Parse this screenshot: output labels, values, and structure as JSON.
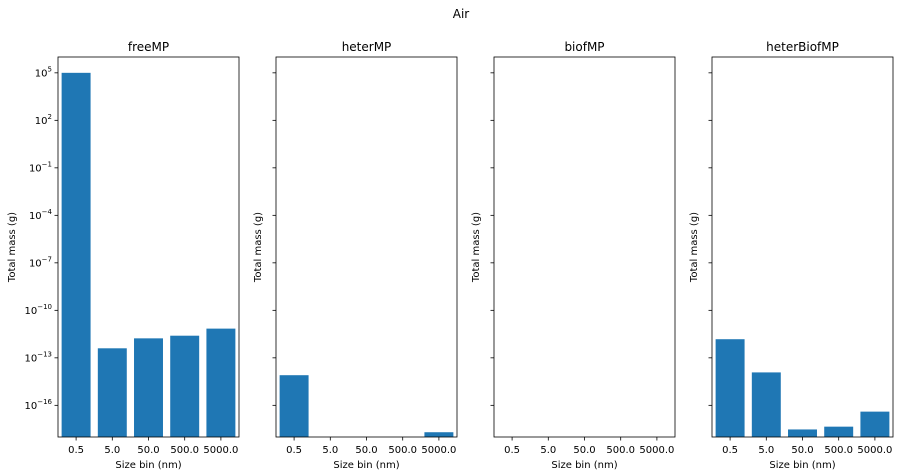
{
  "suptitle": "Air",
  "chart_data": [
    {
      "type": "bar",
      "title": "freeMP",
      "xlabel": "Size bin (nm)",
      "ylabel": "Total mass (g)",
      "yscale": "log",
      "categories": [
        "0.5",
        "5.0",
        "50.0",
        "500.0",
        "5000.0"
      ],
      "values": [
        100000.0,
        4e-13,
        1.7e-12,
        2.5e-12,
        7e-12
      ],
      "ylim": [
        1e-18,
        1000000.0
      ],
      "yticks": [
        {
          "value": 100000.0,
          "base": "10",
          "exp": "5"
        },
        {
          "value": 100.0,
          "base": "10",
          "exp": "2"
        },
        {
          "value": 0.1,
          "base": "10",
          "exp": "−1"
        },
        {
          "value": 0.0001,
          "base": "10",
          "exp": "−4"
        },
        {
          "value": 1e-07,
          "base": "10",
          "exp": "−7"
        },
        {
          "value": 1e-10,
          "base": "10",
          "exp": "−10"
        },
        {
          "value": 1e-13,
          "base": "10",
          "exp": "−13"
        },
        {
          "value": 1e-16,
          "base": "10",
          "exp": "−16"
        }
      ],
      "color": "#1f77b4"
    },
    {
      "type": "bar",
      "title": "heterMP",
      "xlabel": "Size bin (nm)",
      "ylabel": "Total mass (g)",
      "yscale": "log",
      "categories": [
        "0.5",
        "5.0",
        "50.0",
        "500.0",
        "5000.0"
      ],
      "values": [
        8e-15,
        null,
        null,
        null,
        2e-18
      ],
      "ylim": [
        1e-18,
        1000000.0
      ],
      "color": "#1f77b4"
    },
    {
      "type": "bar",
      "title": "biofMP",
      "xlabel": "Size bin (nm)",
      "ylabel": "Total mass (g)",
      "yscale": "log",
      "categories": [
        "0.5",
        "5.0",
        "50.0",
        "500.0",
        "5000.0"
      ],
      "values": [
        null,
        null,
        null,
        null,
        null
      ],
      "ylim": [
        1e-18,
        1000000.0
      ],
      "color": "#1f77b4"
    },
    {
      "type": "bar",
      "title": "heterBiofMP",
      "xlabel": "Size bin (nm)",
      "ylabel": "Total mass (g)",
      "yscale": "log",
      "categories": [
        "0.5",
        "5.0",
        "50.0",
        "500.0",
        "5000.0"
      ],
      "values": [
        1.5e-12,
        1.2e-14,
        3e-18,
        4.5e-18,
        4e-17
      ],
      "ylim": [
        1e-18,
        1000000.0
      ],
      "color": "#1f77b4"
    }
  ]
}
